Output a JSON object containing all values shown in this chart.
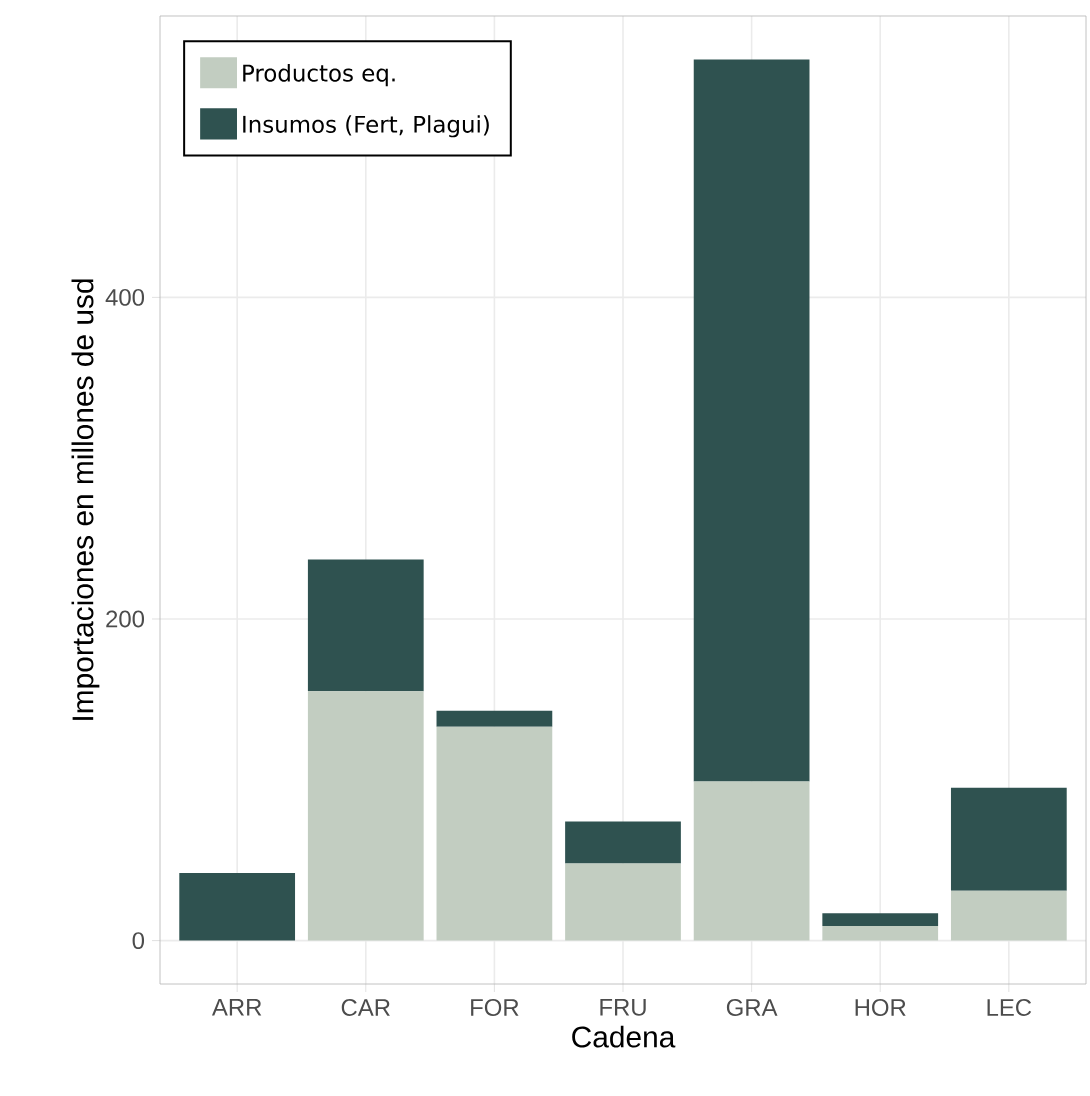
{
  "chart_data": {
    "type": "bar",
    "stacked": true,
    "xlabel": "Cadena",
    "ylabel": "Importaciones en millones de usd",
    "categories": [
      "ARR",
      "CAR",
      "FOR",
      "FRU",
      "GRA",
      "HOR",
      "LEC"
    ],
    "series": [
      {
        "name": "Productos eq.",
        "color": "#c2cdc1",
        "values": [
          0,
          155,
          133,
          48,
          99,
          9,
          31
        ]
      },
      {
        "name": "Insumos (Fert, Plagui)",
        "color": "#2f5250",
        "values": [
          42,
          82,
          10,
          26,
          449,
          8,
          64
        ]
      }
    ],
    "ylim": [
      -27,
      575
    ],
    "yticks": [
      0,
      200,
      400
    ],
    "grid": true,
    "legend": "top left"
  }
}
